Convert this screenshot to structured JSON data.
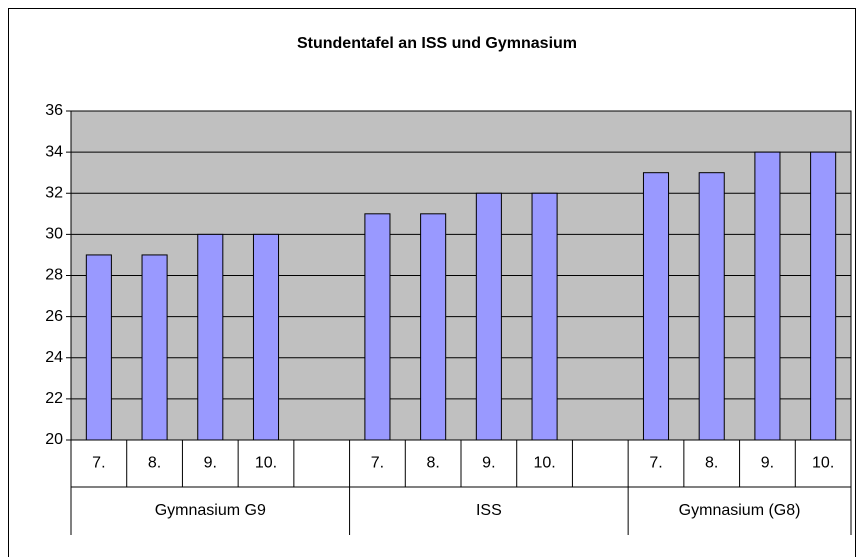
{
  "chart_data": {
    "type": "bar",
    "title": "Stundentafel an ISS und Gymnasium",
    "groups": [
      {
        "name": "Gymnasium G9",
        "categories": [
          "7.",
          "8.",
          "9.",
          "10.",
          null
        ],
        "values": [
          29,
          29,
          30,
          30,
          null
        ]
      },
      {
        "name": "ISS",
        "categories": [
          "7.",
          "8.",
          "9.",
          "10.",
          null
        ],
        "values": [
          31,
          31,
          32,
          32,
          null
        ]
      },
      {
        "name": "Gymnasium (G8)",
        "categories": [
          "7.",
          "8.",
          "9.",
          "10."
        ],
        "values": [
          33,
          33,
          34,
          34
        ]
      }
    ],
    "color": "#9999ff",
    "plot_background": "#c0c0c0",
    "ylim": [
      20,
      36
    ],
    "yticks": [
      20,
      22,
      24,
      26,
      28,
      30,
      32,
      34,
      36
    ],
    "grid": true
  }
}
